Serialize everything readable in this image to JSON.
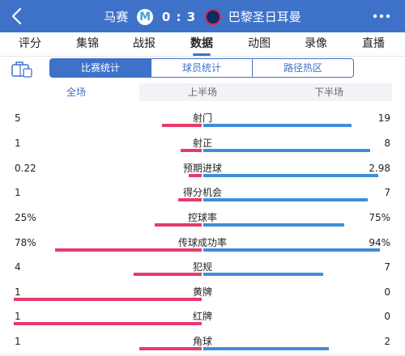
{
  "header": {
    "home_team": "马赛",
    "score": "0 : 3",
    "away_team": "巴黎圣日耳曼",
    "home_logo_text": "M",
    "accent": "#3e72c9"
  },
  "nav": {
    "tabs": [
      {
        "label": "评分"
      },
      {
        "label": "集锦"
      },
      {
        "label": "战报"
      },
      {
        "label": "数据",
        "active": true
      },
      {
        "label": "动图"
      },
      {
        "label": "录像"
      },
      {
        "label": "直播"
      }
    ]
  },
  "subtabs": [
    {
      "label": "比赛统计",
      "active": true
    },
    {
      "label": "球员统计"
    },
    {
      "label": "路径热区"
    }
  ],
  "periods": [
    {
      "label": "全场",
      "active": true
    },
    {
      "label": "上半场"
    },
    {
      "label": "下半场"
    }
  ],
  "stats": [
    {
      "name": "射门",
      "home": "5",
      "away": "19",
      "home_share": 0.21,
      "away_share": 0.79
    },
    {
      "name": "射正",
      "home": "1",
      "away": "8",
      "home_share": 0.11,
      "away_share": 0.89
    },
    {
      "name": "预期进球",
      "home": "0.22",
      "away": "2.98",
      "home_share": 0.07,
      "away_share": 0.93
    },
    {
      "name": "得分机会",
      "home": "1",
      "away": "7",
      "home_share": 0.125,
      "away_share": 0.875
    },
    {
      "name": "控球率",
      "home": "25%",
      "away": "75%",
      "home_share": 0.25,
      "away_share": 0.75
    },
    {
      "name": "传球成功率",
      "home": "78%",
      "away": "94%",
      "home_share": 0.78,
      "away_share": 0.94
    },
    {
      "name": "犯规",
      "home": "4",
      "away": "7",
      "home_share": 0.36,
      "away_share": 0.64
    },
    {
      "name": "黄牌",
      "home": "1",
      "away": "0",
      "home_share": 1.0,
      "away_share": 0.0
    },
    {
      "name": "红牌",
      "home": "1",
      "away": "0",
      "home_share": 1.0,
      "away_share": 0.0
    },
    {
      "name": "角球",
      "home": "1",
      "away": "2",
      "home_share": 0.33,
      "away_share": 0.67
    }
  ],
  "colors": {
    "home_bar": "#e63a6b",
    "away_bar": "#3e8fd9"
  }
}
